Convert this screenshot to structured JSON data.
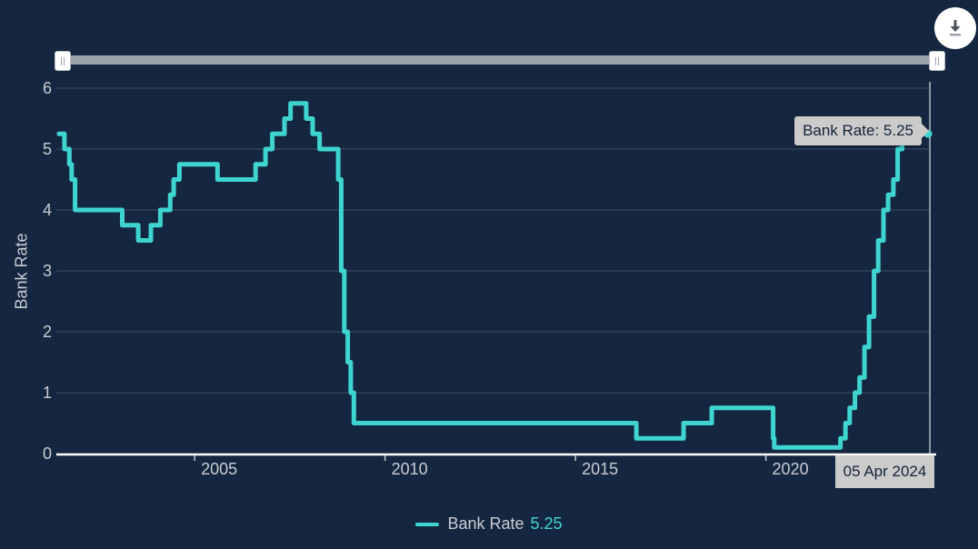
{
  "colors": {
    "background": "#152740",
    "line": "#3ed5d0",
    "grid": "#3d4d61",
    "axis_line": "#ffffff",
    "text": "#c9cdd3",
    "tooltip_bg": "#cbcbcb",
    "tooltip_text": "#142338",
    "scrollbar_track": "#9aa1ab",
    "crosshair": "#b4bcc4"
  },
  "icons": {
    "download": "download-arrow-into-tray",
    "scrollbar_handles": "grip-lines"
  },
  "tooltip": {
    "text": "Bank Rate: 5.25"
  },
  "x_axis_label_box": {
    "text": "05 Apr 2024"
  },
  "legend": {
    "series_label": "Bank Rate",
    "series_value": "5.25"
  },
  "chart_data": {
    "type": "line",
    "step": "after",
    "title": "",
    "xlabel": "",
    "ylabel": "Bank Rate",
    "ylim": [
      0,
      6
    ],
    "yticks": [
      0,
      1,
      2,
      3,
      4,
      5,
      6
    ],
    "xlim": [
      2001.44,
      2024.33
    ],
    "xticks": [
      2005,
      2010,
      2015,
      2020
    ],
    "grid": "horizontal",
    "legend_position": "bottom-center",
    "last_point": {
      "date": "05 Apr 2024",
      "value": 5.25
    },
    "series": [
      {
        "name": "Bank Rate",
        "color": "#3ed5d0",
        "current_value": "5.25",
        "points": [
          [
            2001.44,
            5.25
          ],
          [
            2001.58,
            5.0
          ],
          [
            2001.71,
            4.75
          ],
          [
            2001.77,
            4.5
          ],
          [
            2001.86,
            4.0
          ],
          [
            2003.1,
            3.75
          ],
          [
            2003.52,
            3.5
          ],
          [
            2003.85,
            3.75
          ],
          [
            2004.1,
            4.0
          ],
          [
            2004.36,
            4.25
          ],
          [
            2004.45,
            4.5
          ],
          [
            2004.6,
            4.75
          ],
          [
            2005.6,
            4.5
          ],
          [
            2006.6,
            4.75
          ],
          [
            2006.86,
            5.0
          ],
          [
            2007.04,
            5.25
          ],
          [
            2007.36,
            5.5
          ],
          [
            2007.52,
            5.75
          ],
          [
            2007.93,
            5.5
          ],
          [
            2008.1,
            5.25
          ],
          [
            2008.28,
            5.0
          ],
          [
            2008.77,
            4.5
          ],
          [
            2008.85,
            3.0
          ],
          [
            2008.93,
            2.0
          ],
          [
            2009.02,
            1.5
          ],
          [
            2009.1,
            1.0
          ],
          [
            2009.18,
            0.5
          ],
          [
            2016.6,
            0.25
          ],
          [
            2017.84,
            0.5
          ],
          [
            2018.58,
            0.75
          ],
          [
            2020.19,
            0.25
          ],
          [
            2020.22,
            0.1
          ],
          [
            2021.96,
            0.25
          ],
          [
            2022.09,
            0.5
          ],
          [
            2022.2,
            0.75
          ],
          [
            2022.34,
            1.0
          ],
          [
            2022.46,
            1.25
          ],
          [
            2022.59,
            1.75
          ],
          [
            2022.71,
            2.25
          ],
          [
            2022.84,
            3.0
          ],
          [
            2022.95,
            3.5
          ],
          [
            2023.09,
            4.0
          ],
          [
            2023.21,
            4.25
          ],
          [
            2023.35,
            4.5
          ],
          [
            2023.46,
            5.0
          ],
          [
            2023.58,
            5.25
          ],
          [
            2024.26,
            5.25
          ]
        ]
      }
    ]
  }
}
